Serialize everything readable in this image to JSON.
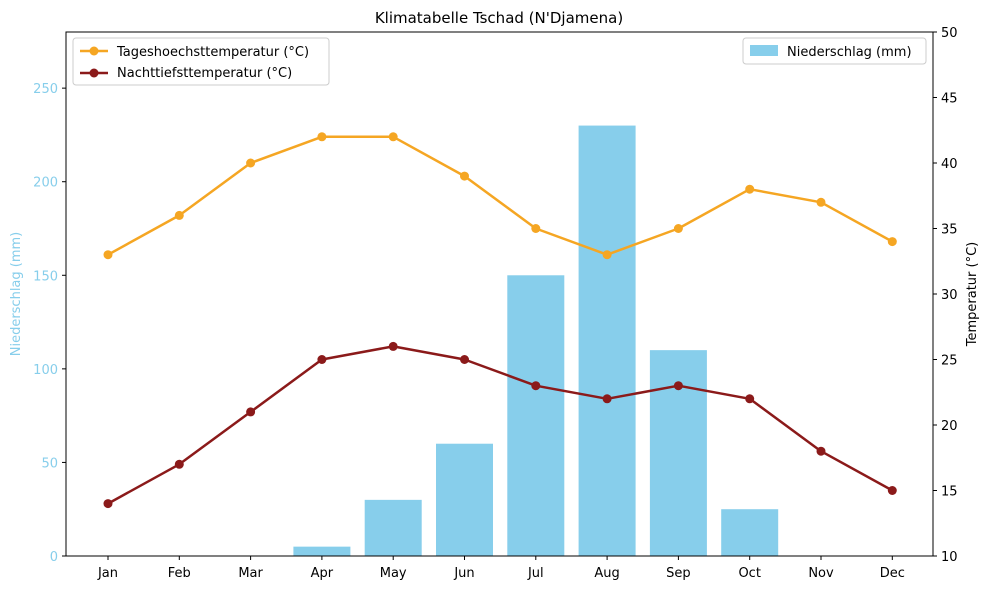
{
  "chart_data": {
    "type": "bar",
    "title": "Klimatabelle Tschad (N'Djamena)",
    "categories": [
      "Jan",
      "Feb",
      "Mar",
      "Apr",
      "May",
      "Jun",
      "Jul",
      "Aug",
      "Sep",
      "Oct",
      "Nov",
      "Dec"
    ],
    "bar_series": {
      "name": "Niederschlag (mm)",
      "values": [
        0,
        0,
        0,
        5,
        30,
        60,
        150,
        230,
        110,
        25,
        0,
        0
      ],
      "color": "#87CEEB"
    },
    "line_series": [
      {
        "name": "Tageshoechsttemperatur (°C)",
        "values": [
          33,
          36,
          40,
          42,
          42,
          39,
          35,
          33,
          35,
          38,
          37,
          34
        ],
        "color": "#F5A623"
      },
      {
        "name": "Nachttiefsttemperatur (°C)",
        "values": [
          14,
          17,
          21,
          25,
          26,
          25,
          23,
          22,
          23,
          22,
          18,
          15
        ],
        "color": "#8B1A1A"
      }
    ],
    "y_left": {
      "label": "Niederschlag (mm)",
      "lim": [
        0,
        280
      ],
      "ticks": [
        0,
        50,
        100,
        150,
        200,
        250
      ],
      "color": "#87CEEB"
    },
    "y_right": {
      "label": "Temperatur (°C)",
      "lim": [
        10,
        50
      ],
      "ticks": [
        10,
        15,
        20,
        25,
        30,
        35,
        40,
        45,
        50
      ],
      "color": "#000000"
    },
    "legend_left_position": "upper-left",
    "legend_right_position": "upper-right",
    "grid": false
  }
}
